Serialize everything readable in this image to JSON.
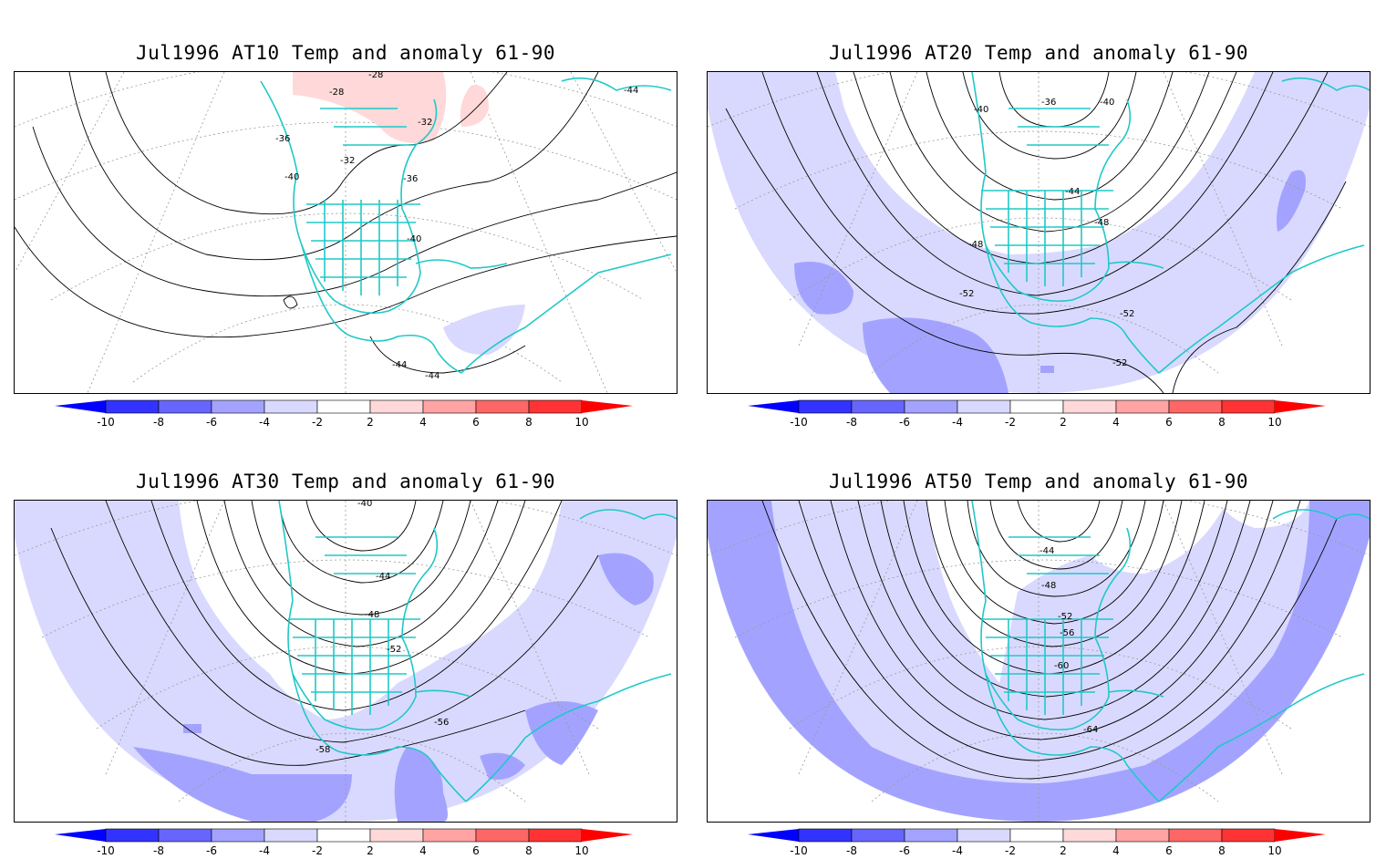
{
  "colorbar": {
    "bins": [
      {
        "from": -10,
        "to": -8,
        "color": "#3333ff"
      },
      {
        "from": -8,
        "to": -6,
        "color": "#6666ff"
      },
      {
        "from": -6,
        "to": -4,
        "color": "#a3a3ff"
      },
      {
        "from": -4,
        "to": -2,
        "color": "#d9d9ff"
      },
      {
        "from": -2,
        "to": 2,
        "color": "#ffffff"
      },
      {
        "from": 2,
        "to": 4,
        "color": "#ffd9d9"
      },
      {
        "from": 4,
        "to": 6,
        "color": "#ffa3a3"
      },
      {
        "from": 6,
        "to": 8,
        "color": "#ff6666"
      },
      {
        "from": 8,
        "to": 10,
        "color": "#ff3333"
      }
    ],
    "low_arrow_color": "#0000ff",
    "high_arrow_color": "#ff0000",
    "tick_labels": [
      "-10",
      "-8",
      "-6",
      "-4",
      "-2",
      "2",
      "4",
      "6",
      "8",
      "10"
    ]
  },
  "colors": {
    "coastline": "#20c8c8",
    "contour": "#000000",
    "graticule": "#999999"
  },
  "panels": [
    {
      "title": "Jul1996 AT10 Temp and anomaly 61-90",
      "contour_labels": [
        "-28",
        "-28",
        "-32",
        "-32",
        "-36",
        "-36",
        "-40",
        "-40",
        "-44",
        "-44",
        "-44"
      ]
    },
    {
      "title": "Jul1996 AT20 Temp and anomaly 61-90",
      "contour_labels": [
        "-36",
        "-40",
        "-40",
        "-44",
        "-48",
        "-48",
        "-52",
        "-52",
        "-52"
      ]
    },
    {
      "title": "Jul1996 AT30 Temp and anomaly 61-90",
      "contour_labels": [
        "-40",
        "-44",
        "-48",
        "-52",
        "-56",
        "-58"
      ]
    },
    {
      "title": "Jul1996 AT50 Temp and anomaly 61-90",
      "contour_labels": [
        "-44",
        "-48",
        "-52",
        "-56",
        "-60",
        "-64"
      ]
    }
  ]
}
